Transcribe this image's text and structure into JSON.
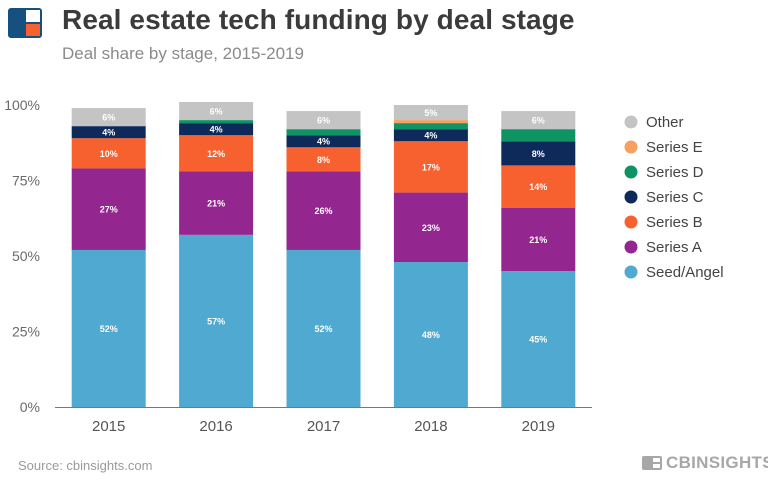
{
  "header": {
    "title": "Real estate tech funding by deal stage",
    "subtitle": "Deal share by stage, 2015-2019"
  },
  "footer": {
    "source": "Source: cbinsights.com",
    "brand": "CBINSIGHTS"
  },
  "chart_data": {
    "type": "bar",
    "stacked": true,
    "categories": [
      "2015",
      "2016",
      "2017",
      "2018",
      "2019"
    ],
    "ylim": [
      0,
      100
    ],
    "yticks": [
      0,
      25,
      50,
      75,
      100
    ],
    "ytick_labels": [
      "0%",
      "25%",
      "50%",
      "75%",
      "100%"
    ],
    "series": [
      {
        "name": "Seed/Angel",
        "color": "#4fa9d1",
        "values": [
          52,
          57,
          52,
          48,
          45
        ],
        "labels": [
          "52%",
          "57%",
          "52%",
          "48%",
          "45%"
        ]
      },
      {
        "name": "Series A",
        "color": "#93278f",
        "values": [
          27,
          21,
          26,
          23,
          21
        ],
        "labels": [
          "27%",
          "21%",
          "26%",
          "23%",
          "21%"
        ]
      },
      {
        "name": "Series B",
        "color": "#f7602f",
        "values": [
          10,
          12,
          8,
          17,
          14
        ],
        "labels": [
          "10%",
          "12%",
          "8%",
          "17%",
          "14%"
        ]
      },
      {
        "name": "Series C",
        "color": "#0d2a5a",
        "values": [
          4,
          4,
          4,
          4,
          8
        ],
        "labels": [
          "4%",
          "4%",
          "4%",
          "4%",
          "8%"
        ]
      },
      {
        "name": "Series D",
        "color": "#0e9364",
        "values": [
          0,
          1,
          2,
          2,
          4
        ],
        "labels": [
          "",
          "",
          "",
          "",
          ""
        ]
      },
      {
        "name": "Series E",
        "color": "#f5a05f",
        "values": [
          0,
          0,
          0,
          1,
          0
        ],
        "labels": [
          "",
          "",
          "",
          "",
          ""
        ]
      },
      {
        "name": "Other",
        "color": "#c4c4c4",
        "values": [
          6,
          6,
          6,
          5,
          6
        ],
        "labels": [
          "6%",
          "6%",
          "6%",
          "5%",
          "6%"
        ]
      }
    ],
    "legend": {
      "placement": "right",
      "order": [
        "Other",
        "Series E",
        "Series D",
        "Series C",
        "Series B",
        "Series A",
        "Seed/Angel"
      ]
    }
  }
}
